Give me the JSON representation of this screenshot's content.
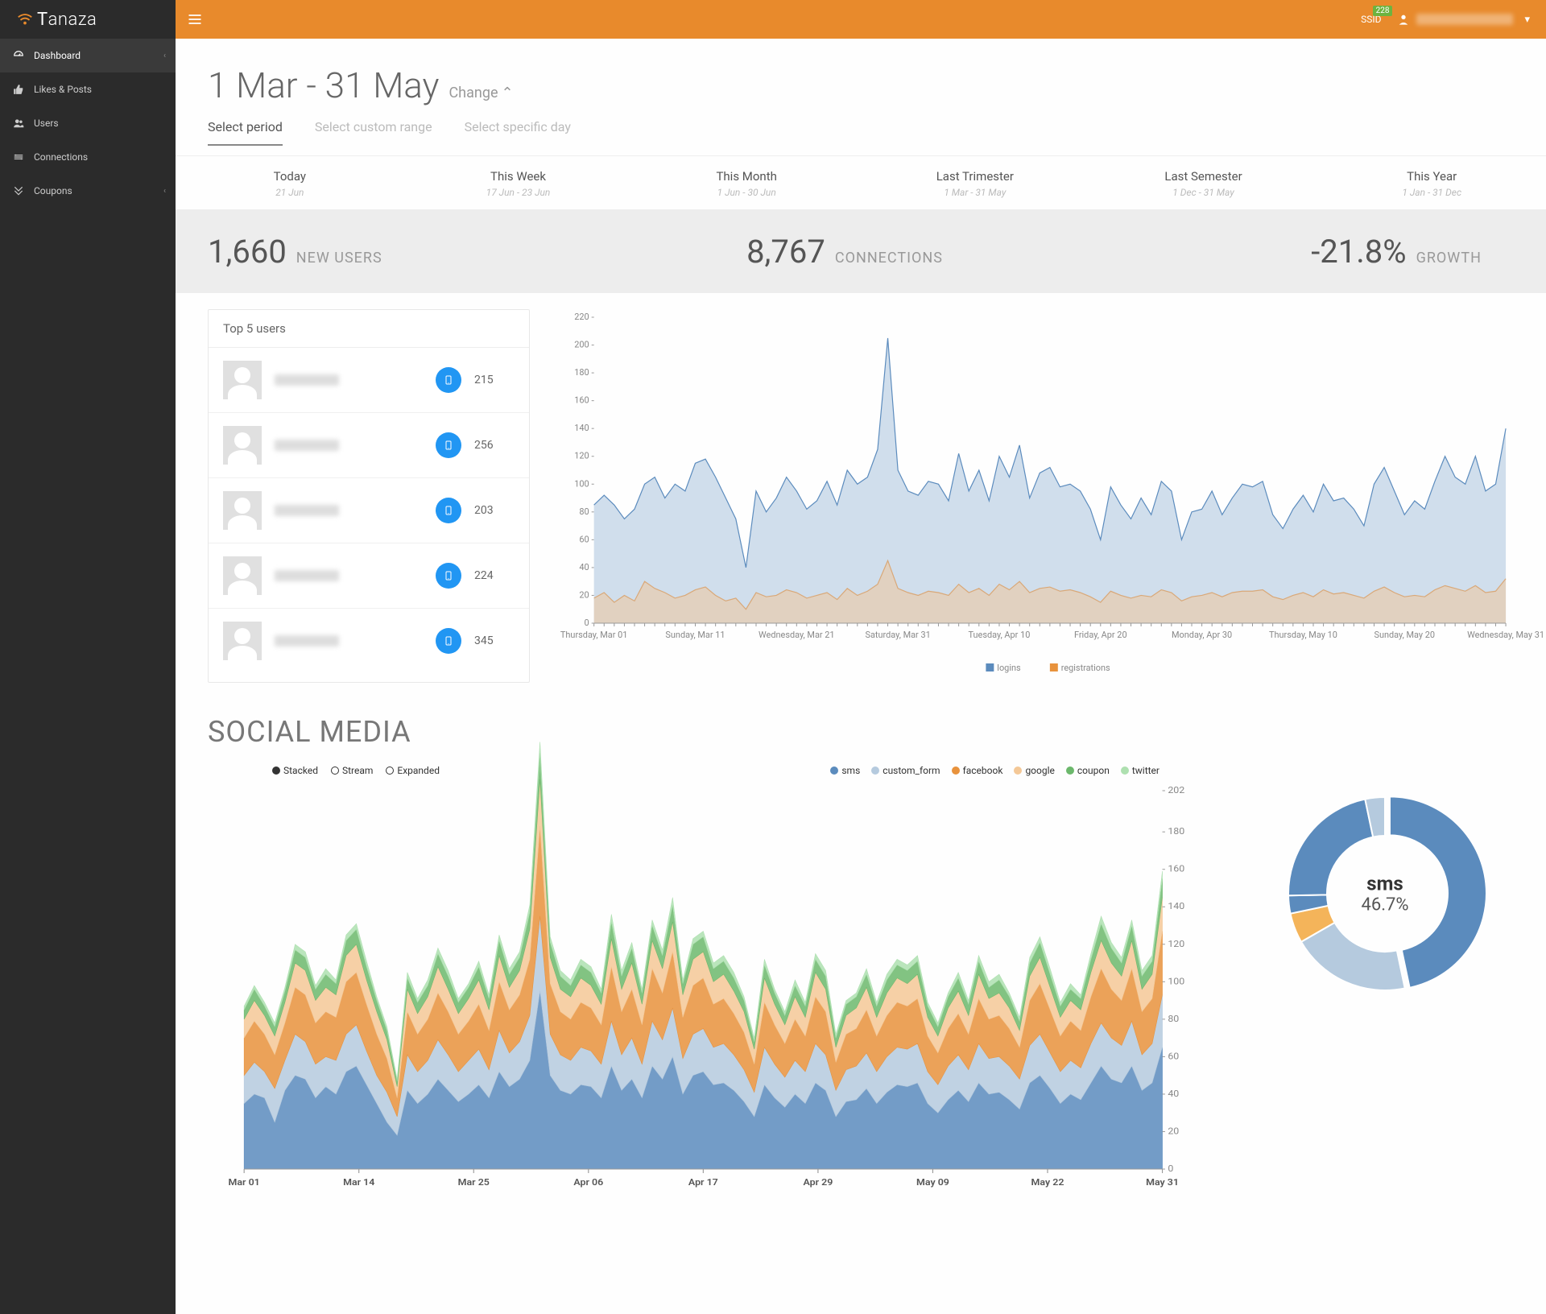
{
  "brand": "Tanaza",
  "topbar": {
    "ssid_label": "SSID",
    "ssid_count": "228"
  },
  "sidebar": {
    "items": [
      {
        "icon": "dashboard",
        "label": "Dashboard",
        "active": true,
        "chevron": true
      },
      {
        "icon": "thumbs-up",
        "label": "Likes & Posts",
        "active": false,
        "chevron": false
      },
      {
        "icon": "users",
        "label": "Users",
        "active": false,
        "chevron": false
      },
      {
        "icon": "connections",
        "label": "Connections",
        "active": false,
        "chevron": false
      },
      {
        "icon": "coupon",
        "label": "Coupons",
        "active": false,
        "chevron": true
      }
    ]
  },
  "date_range": {
    "title": "1 Mar - 31 May",
    "change_label": "Change"
  },
  "tabs": [
    {
      "label": "Select period",
      "active": true
    },
    {
      "label": "Select custom range",
      "active": false
    },
    {
      "label": "Select specific day",
      "active": false
    }
  ],
  "periods": [
    {
      "name": "Today",
      "range": "21 Jun"
    },
    {
      "name": "This Week",
      "range": "17 Jun - 23 Jun"
    },
    {
      "name": "This Month",
      "range": "1 Jun - 30 Jun"
    },
    {
      "name": "Last Trimester",
      "range": "1 Mar - 31 May"
    },
    {
      "name": "Last Semester",
      "range": "1 Dec - 31 May"
    },
    {
      "name": "This Year",
      "range": "1 Jan - 31 Dec"
    }
  ],
  "stats": [
    {
      "value": "1,660",
      "label": "NEW USERS"
    },
    {
      "value": "8,767",
      "label": "CONNECTIONS"
    },
    {
      "value": "-21.8%",
      "label": "GROWTH"
    }
  ],
  "top_users": {
    "title": "Top 5 users",
    "rows": [
      {
        "count": "215"
      },
      {
        "count": "256"
      },
      {
        "count": "203"
      },
      {
        "count": "224"
      },
      {
        "count": "345"
      }
    ]
  },
  "main_chart": {
    "type": "area",
    "y_ticks": [
      0,
      20,
      40,
      60,
      80,
      100,
      120,
      140,
      160,
      180,
      200,
      220
    ],
    "ylim": [
      0,
      220
    ],
    "x_labels": [
      "Thursday, Mar 01",
      "Sunday, Mar 11",
      "Wednesday, Mar 21",
      "Saturday, Mar 31",
      "Tuesday, Apr 10",
      "Friday, Apr 20",
      "Monday, Apr 30",
      "Thursday, May 10",
      "Sunday, May 20",
      "Wednesday, May 31"
    ],
    "legend": [
      {
        "label": "logins",
        "color": "#5b8bbd"
      },
      {
        "label": "registrations",
        "color": "#e8923c"
      }
    ],
    "colors": {
      "logins_stroke": "#5b8bbd",
      "logins_fill": "#bcd0e4",
      "reg_stroke": "#d9a878",
      "reg_fill": "#e5cdb5",
      "grid": "#eeeeee",
      "axis": "#999999",
      "bg": "#ffffff"
    },
    "logins": [
      85,
      92,
      85,
      75,
      82,
      100,
      105,
      90,
      100,
      95,
      115,
      118,
      105,
      90,
      75,
      40,
      95,
      80,
      90,
      105,
      95,
      82,
      88,
      102,
      85,
      110,
      100,
      105,
      125,
      205,
      110,
      95,
      92,
      102,
      100,
      88,
      122,
      95,
      110,
      88,
      120,
      105,
      128,
      90,
      108,
      112,
      98,
      100,
      95,
      82,
      60,
      98,
      85,
      75,
      90,
      78,
      102,
      95,
      60,
      80,
      82,
      95,
      78,
      90,
      100,
      98,
      102,
      78,
      68,
      82,
      92,
      80,
      100,
      88,
      90,
      82,
      70,
      100,
      112,
      95,
      78,
      88,
      82,
      102,
      120,
      105,
      100,
      120,
      95,
      100,
      140
    ],
    "registrations": [
      18,
      22,
      15,
      20,
      16,
      30,
      25,
      22,
      18,
      20,
      24,
      26,
      20,
      16,
      18,
      10,
      22,
      19,
      20,
      24,
      22,
      18,
      20,
      22,
      17,
      25,
      20,
      23,
      28,
      45,
      25,
      22,
      20,
      23,
      22,
      20,
      28,
      22,
      25,
      20,
      28,
      24,
      30,
      22,
      25,
      26,
      23,
      24,
      22,
      19,
      15,
      23,
      20,
      18,
      20,
      19,
      24,
      22,
      16,
      19,
      20,
      22,
      19,
      22,
      23,
      23,
      24,
      19,
      17,
      20,
      22,
      19,
      24,
      21,
      22,
      20,
      18,
      23,
      26,
      22,
      19,
      20,
      19,
      24,
      27,
      25,
      23,
      27,
      22,
      23,
      32
    ]
  },
  "social": {
    "title": "SOCIAL MEDIA",
    "view_modes": [
      {
        "label": "Stacked",
        "selected": true
      },
      {
        "label": "Stream",
        "selected": false
      },
      {
        "label": "Expanded",
        "selected": false
      }
    ],
    "legend": [
      {
        "label": "sms",
        "color": "#5b8bbd"
      },
      {
        "label": "custom_form",
        "color": "#b5cade"
      },
      {
        "label": "facebook",
        "color": "#e8923c"
      },
      {
        "label": "google",
        "color": "#f4c897"
      },
      {
        "label": "coupon",
        "color": "#6cb86c"
      },
      {
        "label": "twitter",
        "color": "#aee0b0"
      }
    ],
    "type": "stacked-area",
    "y_ticks": [
      0,
      20,
      40,
      60,
      80,
      100,
      120,
      140,
      160,
      180,
      202
    ],
    "ylim": [
      0,
      202
    ],
    "x_labels": [
      "Mar 01",
      "Mar 14",
      "Mar 25",
      "Apr 06",
      "Apr 17",
      "Apr 29",
      "May 09",
      "May 22",
      "May 31"
    ],
    "series": {
      "sms": [
        35,
        40,
        38,
        25,
        42,
        50,
        48,
        38,
        44,
        40,
        52,
        55,
        45,
        35,
        25,
        18,
        42,
        35,
        40,
        48,
        42,
        36,
        40,
        45,
        38,
        52,
        44,
        48,
        58,
        95,
        50,
        42,
        40,
        45,
        44,
        38,
        55,
        42,
        48,
        38,
        55,
        48,
        60,
        40,
        50,
        52,
        45,
        46,
        42,
        36,
        28,
        45,
        38,
        33,
        40,
        35,
        46,
        42,
        28,
        36,
        37,
        43,
        35,
        41,
        45,
        44,
        46,
        35,
        30,
        37,
        42,
        36,
        46,
        40,
        41,
        37,
        32,
        46,
        50,
        43,
        35,
        40,
        37,
        46,
        55,
        48,
        46,
        55,
        42,
        46,
        65
      ],
      "custom_form": [
        15,
        17,
        14,
        18,
        16,
        22,
        20,
        18,
        16,
        18,
        20,
        22,
        18,
        15,
        16,
        10,
        19,
        17,
        18,
        21,
        19,
        16,
        18,
        19,
        15,
        22,
        18,
        20,
        24,
        40,
        22,
        19,
        18,
        20,
        19,
        18,
        24,
        19,
        22,
        18,
        24,
        21,
        26,
        19,
        22,
        23,
        20,
        21,
        19,
        17,
        13,
        20,
        18,
        16,
        18,
        17,
        21,
        19,
        14,
        17,
        18,
        19,
        17,
        19,
        20,
        20,
        21,
        17,
        15,
        18,
        19,
        17,
        21,
        19,
        19,
        18,
        16,
        20,
        22,
        19,
        17,
        18,
        17,
        21,
        23,
        22,
        20,
        24,
        19,
        21,
        28
      ],
      "facebook": [
        20,
        22,
        20,
        18,
        20,
        25,
        25,
        22,
        24,
        23,
        28,
        28,
        25,
        22,
        18,
        10,
        23,
        20,
        22,
        25,
        23,
        20,
        21,
        24,
        21,
        26,
        23,
        25,
        30,
        48,
        27,
        23,
        22,
        24,
        23,
        21,
        29,
        23,
        26,
        21,
        28,
        25,
        30,
        22,
        26,
        27,
        23,
        24,
        22,
        20,
        15,
        24,
        21,
        18,
        22,
        19,
        25,
        23,
        15,
        19,
        20,
        23,
        19,
        22,
        24,
        23,
        24,
        19,
        17,
        20,
        22,
        19,
        24,
        21,
        22,
        20,
        17,
        24,
        27,
        23,
        19,
        21,
        20,
        25,
        29,
        26,
        24,
        28,
        23,
        24,
        34
      ],
      "google": [
        10,
        11,
        10,
        10,
        11,
        13,
        13,
        12,
        13,
        12,
        14,
        15,
        13,
        12,
        10,
        6,
        12,
        11,
        12,
        14,
        12,
        11,
        12,
        13,
        11,
        14,
        12,
        13,
        16,
        25,
        14,
        12,
        12,
        13,
        12,
        11,
        15,
        12,
        14,
        11,
        15,
        13,
        16,
        12,
        14,
        14,
        12,
        13,
        12,
        11,
        8,
        13,
        11,
        10,
        12,
        10,
        13,
        12,
        8,
        10,
        11,
        12,
        10,
        12,
        13,
        12,
        13,
        10,
        9,
        11,
        12,
        10,
        13,
        11,
        12,
        11,
        9,
        13,
        14,
        12,
        10,
        11,
        11,
        13,
        15,
        14,
        13,
        15,
        12,
        13,
        18
      ],
      "coupon": [
        5,
        6,
        5,
        5,
        6,
        7,
        7,
        6,
        7,
        6,
        8,
        8,
        7,
        6,
        5,
        3,
        6,
        6,
        6,
        7,
        7,
        6,
        6,
        7,
        6,
        8,
        7,
        7,
        9,
        14,
        8,
        7,
        6,
        7,
        7,
        6,
        9,
        7,
        8,
        6,
        8,
        7,
        9,
        6,
        8,
        8,
        7,
        7,
        7,
        6,
        4,
        7,
        6,
        5,
        6,
        6,
        7,
        7,
        5,
        6,
        6,
        7,
        6,
        7,
        7,
        7,
        7,
        6,
        5,
        6,
        7,
        6,
        7,
        6,
        7,
        6,
        5,
        7,
        8,
        7,
        6,
        6,
        6,
        7,
        9,
        8,
        7,
        8,
        7,
        7,
        10
      ],
      "twitter": [
        2,
        2,
        2,
        2,
        2,
        3,
        3,
        2,
        3,
        2,
        3,
        3,
        3,
        2,
        2,
        1,
        3,
        2,
        3,
        3,
        3,
        2,
        2,
        3,
        2,
        3,
        3,
        3,
        4,
        6,
        3,
        3,
        3,
        3,
        3,
        2,
        4,
        3,
        3,
        2,
        3,
        3,
        4,
        2,
        3,
        3,
        3,
        3,
        3,
        2,
        2,
        3,
        2,
        2,
        3,
        2,
        3,
        3,
        2,
        2,
        2,
        3,
        2,
        3,
        3,
        3,
        3,
        2,
        2,
        2,
        3,
        2,
        3,
        3,
        3,
        2,
        2,
        3,
        3,
        3,
        2,
        3,
        2,
        3,
        4,
        3,
        3,
        3,
        3,
        3,
        4
      ]
    },
    "donut": {
      "label": "sms",
      "value": "46.7%",
      "slices": [
        {
          "label": "sms",
          "pct": 46.7,
          "color": "#5b8bbd"
        },
        {
          "label": "custom_form",
          "pct": 20.0,
          "color": "#b5cade"
        },
        {
          "label": "facebook",
          "pct": 5.0,
          "color": "#e8923c"
        },
        {
          "label": "google",
          "pct": 3.0,
          "color": "#f4c897"
        },
        {
          "label": "coupon",
          "pct": 22.0,
          "color": "#6cb86c",
          "hidden_color": "#5b8bbd"
        },
        {
          "label": "twitter",
          "pct": 3.3,
          "color": "#b5cade"
        }
      ]
    }
  }
}
